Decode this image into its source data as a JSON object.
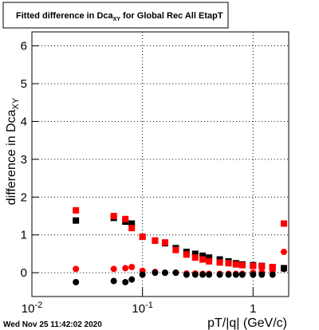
{
  "chart_data": {
    "type": "scatter",
    "title": {
      "text": "Fitted difference in Dca",
      "sub": "XY",
      "rest": " for Global Rec All EtapT"
    },
    "x_label": "pT/|q| (GeV/c)",
    "y_label": {
      "text": "difference in Dca",
      "sub": "XY"
    },
    "footer": "Wed Nov 25 11:42:02 2020",
    "x_log": true,
    "grid": true,
    "xlim": [
      0.01,
      2.1
    ],
    "ylim": [
      -0.63,
      6.37
    ],
    "xticks": [
      {
        "value": 0.01,
        "label": "10",
        "exponent": "-2"
      },
      {
        "value": 0.1,
        "label": "10",
        "exponent": "-1"
      },
      1
    ],
    "yticks": [
      0,
      1,
      2,
      3,
      4,
      5,
      6
    ],
    "x": [
      0.025,
      0.055,
      0.07,
      0.08,
      0.1,
      0.13,
      0.16,
      0.2,
      0.25,
      0.3,
      0.35,
      0.4,
      0.5,
      0.6,
      0.7,
      0.8,
      1.0,
      1.2,
      1.5,
      1.9
    ],
    "series": [
      {
        "color": "#000000",
        "marker": "square",
        "values": [
          1.38,
          1.45,
          1.35,
          1.3,
          0.95,
          0.85,
          0.78,
          0.65,
          0.55,
          0.5,
          0.45,
          0.4,
          0.35,
          0.3,
          0.25,
          0.22,
          0.2,
          0.18,
          0.15,
          0.12
        ]
      },
      {
        "color": "#ff0000",
        "marker": "square",
        "values": [
          1.65,
          1.5,
          1.42,
          1.18,
          0.95,
          0.85,
          0.8,
          0.6,
          0.48,
          0.4,
          0.35,
          0.3,
          0.27,
          0.25,
          0.22,
          0.2,
          0.18,
          0.17,
          0.15,
          1.3
        ]
      },
      {
        "color": "#ff0000",
        "marker": "circle",
        "values": [
          0.1,
          0.1,
          0.12,
          0.15,
          0.05,
          0.02,
          0,
          0,
          -0.02,
          -0.02,
          -0.03,
          -0.03,
          -0.03,
          -0.03,
          -0.03,
          -0.03,
          0,
          0.02,
          0.05,
          0.55
        ]
      },
      {
        "color": "#000000",
        "marker": "circle",
        "values": [
          -0.25,
          -0.22,
          -0.25,
          -0.18,
          -0.05,
          0,
          0,
          0,
          -0.05,
          -0.05,
          -0.05,
          -0.05,
          -0.05,
          -0.05,
          -0.05,
          -0.05,
          -0.05,
          -0.05,
          -0.05,
          0.1
        ]
      }
    ]
  }
}
